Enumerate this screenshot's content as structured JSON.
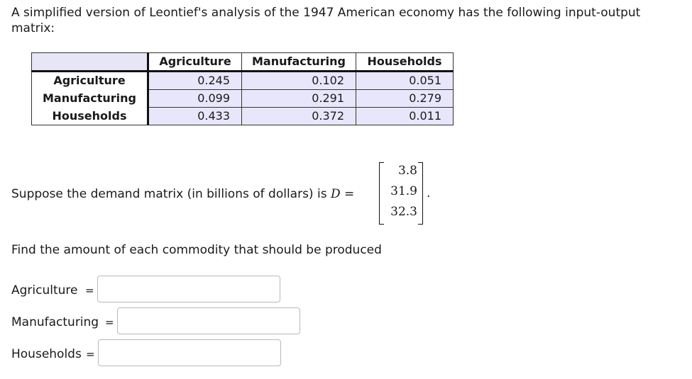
{
  "intro": "A simplified version of Leontief's analysis of the 1947 American economy has the following input-output matrix:",
  "table": {
    "columns": [
      "Agriculture",
      "Manufacturing",
      "Households"
    ],
    "rows": [
      {
        "label": "Agriculture",
        "values": [
          "0.245",
          "0.102",
          "0.051"
        ]
      },
      {
        "label": "Manufacturing",
        "values": [
          "0.099",
          "0.291",
          "0.279"
        ]
      },
      {
        "label": "Households",
        "values": [
          "0.433",
          "0.372",
          "0.011"
        ]
      }
    ]
  },
  "demand": {
    "text": "Suppose the demand matrix (in billions of dollars) is",
    "symbol": "D =",
    "values": [
      "3.8",
      "31.9",
      "32.3"
    ],
    "period": "."
  },
  "question": "Find the amount of each commodity that should be produced",
  "answers": [
    {
      "label": "Agriculture",
      "equals": "=",
      "value": ""
    },
    {
      "label": "Manufacturing",
      "equals": "=",
      "value": ""
    },
    {
      "label": "Households",
      "equals": "=",
      "value": ""
    }
  ]
}
